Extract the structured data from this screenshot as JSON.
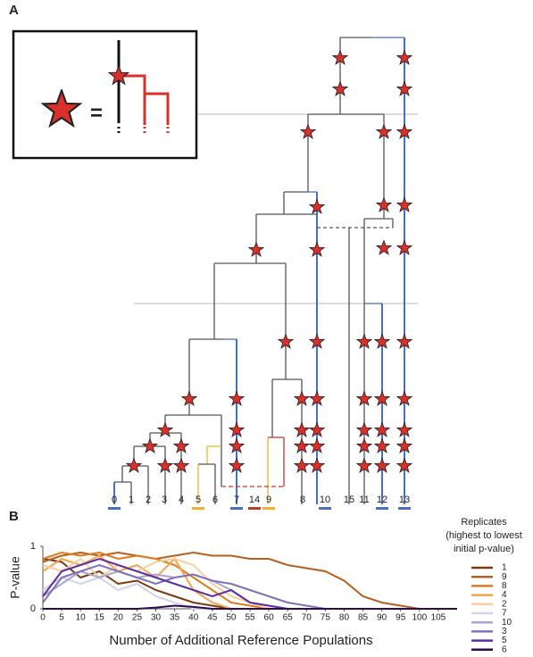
{
  "panel_a": {
    "label": "A",
    "inset_symbol": "=",
    "leaves": [
      "0",
      "1",
      "2",
      "3",
      "4",
      "5",
      "6",
      "7",
      "14",
      "9",
      "8",
      "10",
      "15",
      "11",
      "12",
      "13"
    ]
  },
  "chart_data": {
    "type": "line",
    "panel_label": "B",
    "y_label": "P-value",
    "x_label": "Number of Additional Reference Populations",
    "legend_title": [
      "Replicates",
      "(highest to lowest",
      "initial p-value)"
    ],
    "x": [
      0,
      5,
      10,
      15,
      20,
      25,
      30,
      35,
      40,
      45,
      50,
      55,
      60,
      65,
      70,
      75,
      80,
      85,
      90,
      95,
      100,
      105,
      110
    ],
    "xlim": [
      0,
      110
    ],
    "xticks": [
      0,
      5,
      10,
      15,
      20,
      25,
      30,
      35,
      40,
      45,
      50,
      55,
      60,
      65,
      70,
      75,
      80,
      85,
      90,
      95,
      100,
      105
    ],
    "ylim": [
      0,
      1
    ],
    "yticks": [
      0,
      1
    ],
    "series": [
      {
        "name": "1",
        "color": "#7a3b12",
        "values": [
          0.8,
          0.75,
          0.5,
          0.6,
          0.4,
          0.45,
          0.3,
          0.2,
          0.1,
          0.05,
          0,
          0,
          0,
          0,
          0,
          0,
          0,
          0,
          0,
          0,
          0,
          0,
          0
        ]
      },
      {
        "name": "9",
        "color": "#b5601f",
        "values": [
          0.75,
          0.85,
          0.9,
          0.85,
          0.9,
          0.85,
          0.8,
          0.85,
          0.9,
          0.85,
          0.85,
          0.8,
          0.8,
          0.7,
          0.65,
          0.6,
          0.45,
          0.2,
          0.1,
          0.05,
          0,
          0,
          0
        ]
      },
      {
        "name": "8",
        "color": "#e07b20",
        "values": [
          0.8,
          0.9,
          0.85,
          0.9,
          0.8,
          0.85,
          0.8,
          0.7,
          0.5,
          0.3,
          0.1,
          0.05,
          0,
          0,
          0,
          0,
          0,
          0,
          0,
          0,
          0,
          0,
          0
        ]
      },
      {
        "name": "4",
        "color": "#f2a54a",
        "values": [
          0.6,
          0.8,
          0.7,
          0.85,
          0.6,
          0.7,
          0.5,
          0.8,
          0.3,
          0.1,
          0,
          0,
          0,
          0,
          0,
          0,
          0,
          0,
          0,
          0,
          0,
          0,
          0
        ]
      },
      {
        "name": "2",
        "color": "#f8cfa0",
        "values": [
          0.7,
          0.6,
          0.8,
          0.5,
          0.7,
          0.6,
          0.75,
          0.8,
          0.7,
          0.4,
          0.2,
          0.1,
          0,
          0,
          0,
          0,
          0,
          0,
          0,
          0,
          0,
          0,
          0
        ]
      },
      {
        "name": "7",
        "color": "#d2d2e8",
        "values": [
          0.3,
          0.5,
          0.4,
          0.5,
          0.3,
          0.4,
          0.2,
          0.1,
          0,
          0,
          0,
          0,
          0,
          0,
          0,
          0,
          0,
          0,
          0,
          0,
          0,
          0,
          0
        ]
      },
      {
        "name": "10",
        "color": "#a6a6d0",
        "values": [
          0.2,
          0.4,
          0.6,
          0.5,
          0.6,
          0.5,
          0.55,
          0.5,
          0.55,
          0.45,
          0.3,
          0.1,
          0.05,
          0,
          0,
          0,
          0,
          0,
          0,
          0,
          0,
          0,
          0
        ]
      },
      {
        "name": "3",
        "color": "#8070b8",
        "values": [
          0.1,
          0.5,
          0.6,
          0.7,
          0.6,
          0.5,
          0.4,
          0.5,
          0.55,
          0.45,
          0.4,
          0.3,
          0.2,
          0.1,
          0.05,
          0,
          0,
          0,
          0,
          0,
          0,
          0,
          0
        ]
      },
      {
        "name": "5",
        "color": "#5e2ea0",
        "values": [
          0.2,
          0.6,
          0.7,
          0.8,
          0.7,
          0.6,
          0.5,
          0.4,
          0.3,
          0.2,
          0.3,
          0.1,
          0.05,
          0,
          0,
          0,
          0,
          0,
          0,
          0,
          0,
          0,
          0
        ]
      },
      {
        "name": "6",
        "color": "#2e0a4e",
        "values": [
          0,
          0,
          0,
          0,
          0,
          0,
          0.02,
          0.05,
          0.03,
          0,
          0,
          0,
          0,
          0,
          0,
          0,
          0,
          0,
          0,
          0,
          0,
          0,
          0
        ]
      }
    ]
  }
}
